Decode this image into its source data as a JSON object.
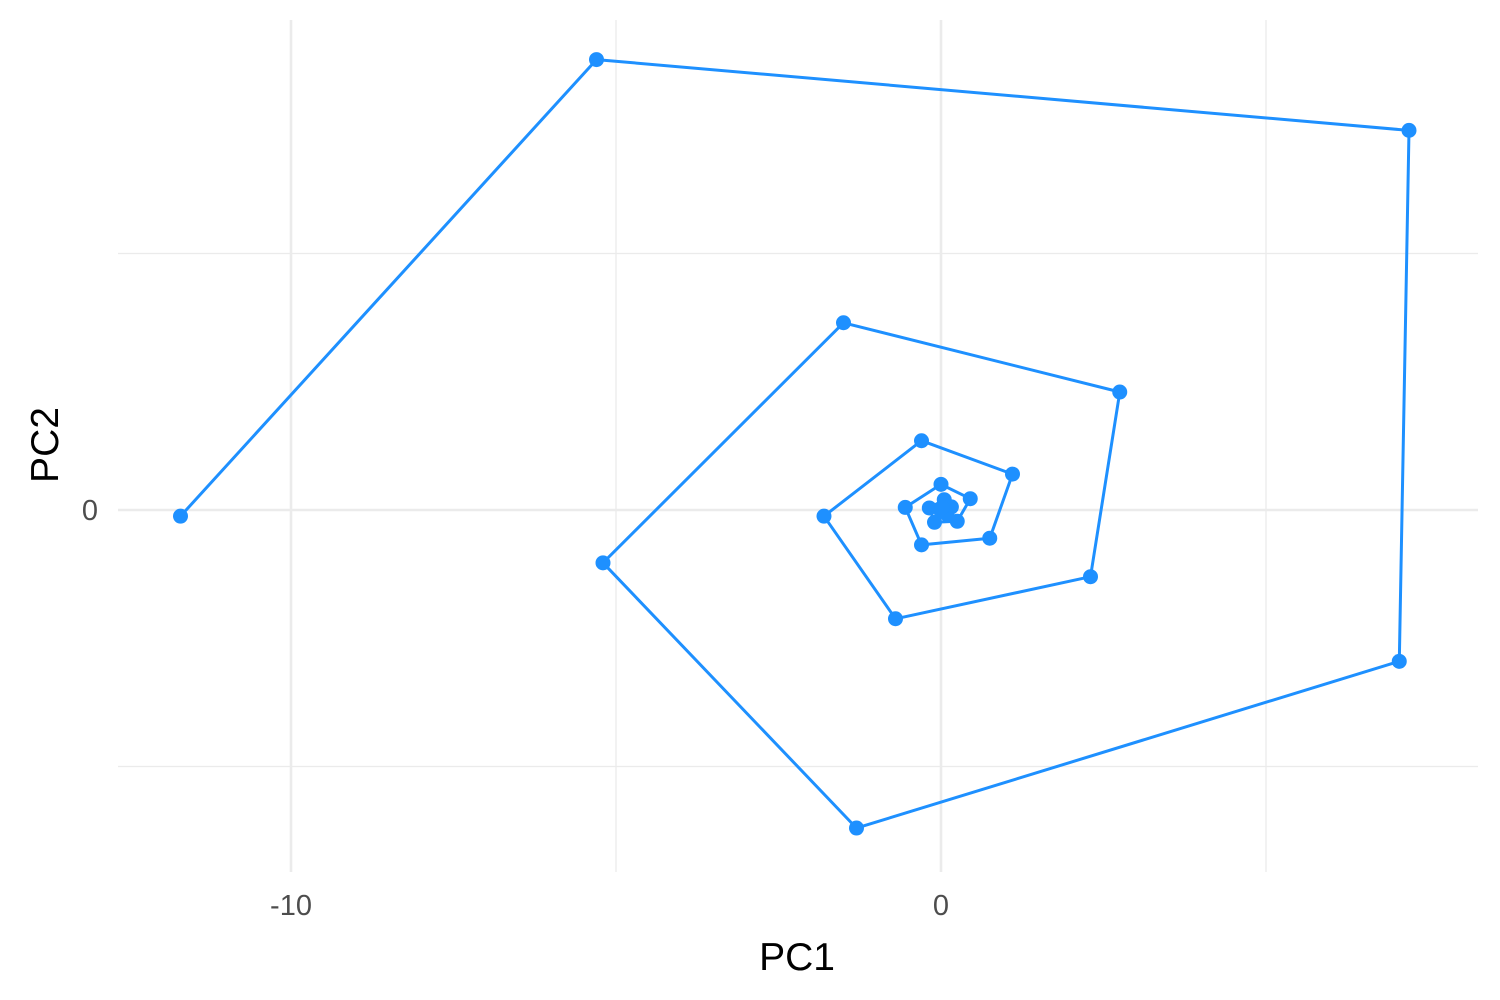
{
  "chart_data": {
    "type": "line",
    "xlabel": "PC1",
    "ylabel": "PC2",
    "xlim": [
      -13.3,
      8.2
    ],
    "ylim": [
      -7.8,
      5.9
    ],
    "x_major_ticks": [
      -10,
      0
    ],
    "x_minor_ticks": [
      -5,
      5
    ],
    "y_major_ticks": [
      0
    ],
    "y_minor_ticks": [
      -5,
      5
    ],
    "grid": true,
    "legend": "none",
    "color": "#1e90ff",
    "series": [
      {
        "points": [
          {
            "x": -11.7,
            "y": -0.12
          },
          {
            "x": -5.3,
            "y": 8.78
          },
          {
            "x": 7.2,
            "y": 7.4
          },
          {
            "x": 7.05,
            "y": -2.95
          },
          {
            "x": -1.3,
            "y": -6.2
          },
          {
            "x": -5.2,
            "y": -1.03
          },
          {
            "x": -1.5,
            "y": 3.65
          },
          {
            "x": 2.75,
            "y": 2.3
          },
          {
            "x": 2.3,
            "y": -1.3
          },
          {
            "x": -0.7,
            "y": -2.12
          },
          {
            "x": -1.8,
            "y": -0.12
          },
          {
            "x": -0.3,
            "y": 1.35
          },
          {
            "x": 1.1,
            "y": 0.7
          },
          {
            "x": 0.75,
            "y": -0.55
          },
          {
            "x": -0.3,
            "y": -0.68
          },
          {
            "x": -0.55,
            "y": 0.05
          },
          {
            "x": 0.0,
            "y": 0.5
          },
          {
            "x": 0.45,
            "y": 0.22
          },
          {
            "x": 0.25,
            "y": -0.22
          },
          {
            "x": -0.1,
            "y": -0.24
          },
          {
            "x": -0.18,
            "y": 0.04
          },
          {
            "x": 0.05,
            "y": 0.2
          },
          {
            "x": 0.16,
            "y": 0.06
          },
          {
            "x": 0.09,
            "y": -0.08
          },
          {
            "x": 0.0,
            "y": -0.02
          },
          {
            "x": 0.02,
            "y": 0.05
          }
        ]
      }
    ]
  }
}
